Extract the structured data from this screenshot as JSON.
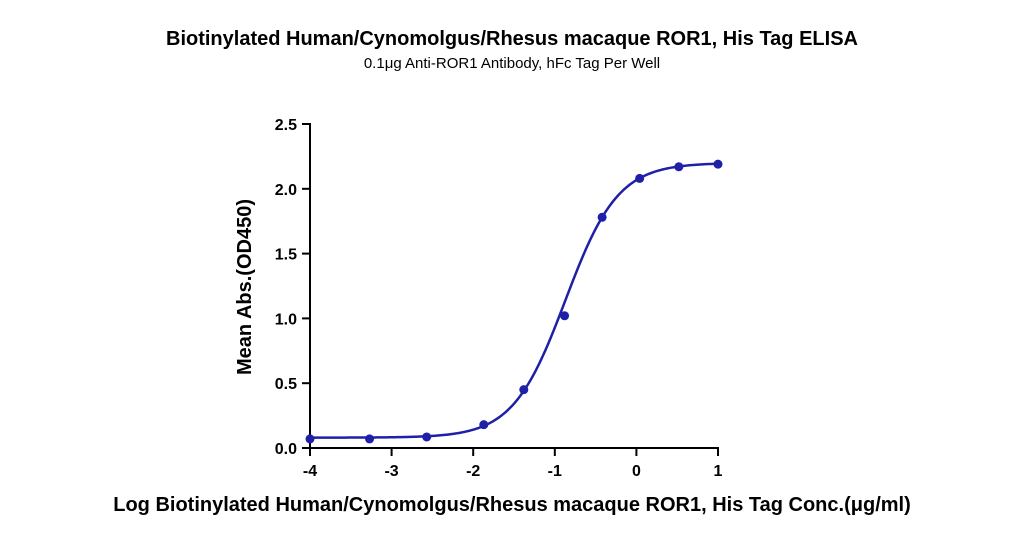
{
  "chart_data": {
    "type": "line",
    "title": "Biotinylated Human/Cynomolgus/Rhesus macaque ROR1, His Tag ELISA",
    "subtitle": "0.1μg Anti-ROR1 Antibody, hFc Tag Per Well",
    "xlabel": "Log Biotinylated Human/Cynomolgus/Rhesus macaque ROR1, His Tag Conc.(μg/ml)",
    "ylabel": "Mean Abs.(OD450)",
    "xlim": [
      -4,
      1
    ],
    "ylim": [
      0,
      2.5
    ],
    "xticks": [
      "-4",
      "-3",
      "-2",
      "-1",
      "0",
      "1"
    ],
    "yticks": [
      "0.0",
      "0.5",
      "1.0",
      "1.5",
      "2.0",
      "2.5"
    ],
    "grid": false,
    "legend": "none",
    "color": "#1f1fa8",
    "series": [
      {
        "points": [
          {
            "x": -4.0,
            "y": 0.07
          },
          {
            "x": -3.27,
            "y": 0.07
          },
          {
            "x": -2.57,
            "y": 0.085
          },
          {
            "x": -1.87,
            "y": 0.18
          },
          {
            "x": -1.38,
            "y": 0.45
          },
          {
            "x": -0.88,
            "y": 1.02
          },
          {
            "x": -0.42,
            "y": 1.78
          },
          {
            "x": 0.04,
            "y": 2.08
          },
          {
            "x": 0.52,
            "y": 2.17
          },
          {
            "x": 1.0,
            "y": 2.19
          }
        ],
        "fit": {
          "model": "4PL",
          "bottom": 0.08,
          "top": 2.2,
          "logEC50": -0.87,
          "hill": 1.35
        }
      }
    ]
  }
}
